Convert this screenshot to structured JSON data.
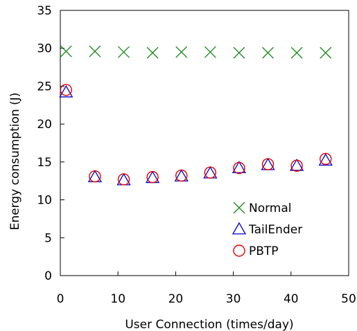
{
  "chart_data": {
    "type": "scatter",
    "title": "",
    "xlabel": "User Connection (times/day)",
    "ylabel": "Energy consumption (J)",
    "xlim": [
      0,
      50
    ],
    "ylim": [
      0,
      35
    ],
    "x_ticks": [
      "0",
      "10",
      "20",
      "30",
      "40",
      "50"
    ],
    "y_ticks": [
      "0",
      "5",
      "10",
      "15",
      "20",
      "25",
      "30",
      "35"
    ],
    "grid": false,
    "legend_position": "bottom-right",
    "series": [
      {
        "name": "Normal",
        "marker": "x",
        "color": "#228B22",
        "x": [
          1,
          6,
          11,
          16,
          21,
          26,
          31,
          36,
          41,
          46
        ],
        "y": [
          29.6,
          29.6,
          29.5,
          29.4,
          29.5,
          29.5,
          29.4,
          29.4,
          29.4,
          29.4
        ]
      },
      {
        "name": "TailEnder",
        "marker": "triangle",
        "color": "#0000CC",
        "x": [
          1,
          6,
          11,
          16,
          21,
          26,
          31,
          36,
          41,
          46
        ],
        "y": [
          24.2,
          13.0,
          12.6,
          12.9,
          13.1,
          13.5,
          14.2,
          14.6,
          14.5,
          15.2
        ]
      },
      {
        "name": "PBTP",
        "marker": "circle",
        "color": "#E00000",
        "x": [
          1,
          6,
          11,
          16,
          21,
          26,
          31,
          36,
          41,
          46
        ],
        "y": [
          24.5,
          13.1,
          12.7,
          13.0,
          13.2,
          13.6,
          14.2,
          14.7,
          14.5,
          15.4
        ]
      }
    ]
  }
}
